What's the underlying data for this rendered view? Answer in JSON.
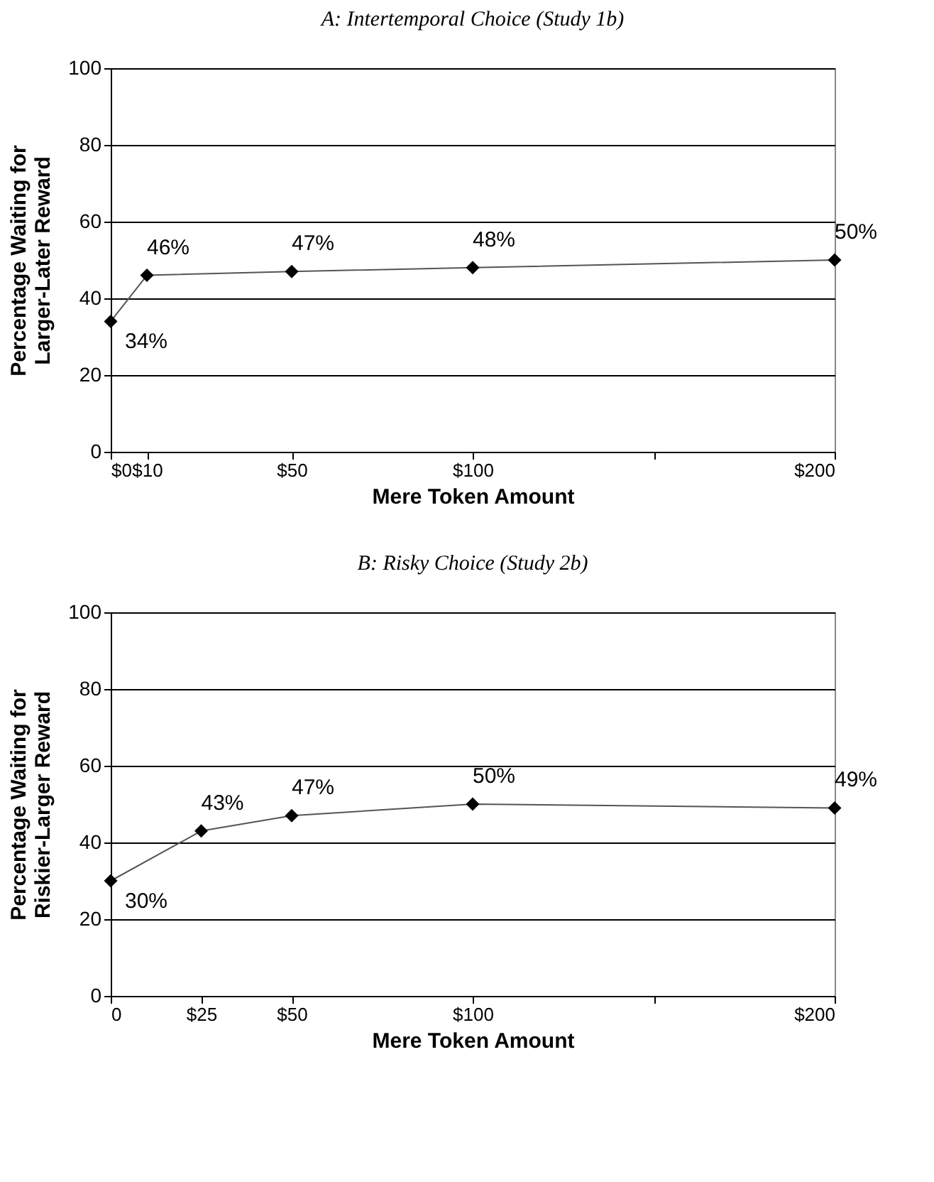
{
  "chart_data": [
    {
      "type": "line",
      "title": "A: Intertemporal Choice (Study 1b)",
      "xlabel": "Mere Token Amount",
      "ylabel": "Percentage Waiting for\nLarger-Later Reward",
      "x": [
        0,
        10,
        50,
        100,
        200
      ],
      "series": [
        {
          "color": "#000000",
          "values": [
            34,
            46,
            47,
            48,
            50
          ],
          "value_labels": [
            "34%",
            "46%",
            "47%",
            "48%",
            "50%"
          ]
        }
      ],
      "xlim": [
        0,
        200
      ],
      "xticks": [
        {
          "value": 0,
          "label": "$0"
        },
        {
          "value": 10,
          "label": "$10"
        },
        {
          "value": 50,
          "label": "$50"
        },
        {
          "value": 100,
          "label": "$100"
        },
        {
          "value": 150,
          "label": null
        },
        {
          "value": 200,
          "label": "$200"
        }
      ],
      "ylim": [
        0,
        100
      ],
      "yticks": [
        0,
        20,
        40,
        60,
        80,
        100
      ],
      "grid": "y",
      "marker": "diamond",
      "line_style": "solid"
    },
    {
      "type": "line",
      "title": "B: Risky Choice (Study 2b)",
      "xlabel": "Mere Token Amount",
      "ylabel": "Percentage Waiting for\nRiskier-Larger Reward",
      "x": [
        0,
        25,
        50,
        100,
        200
      ],
      "series": [
        {
          "color": "#000000",
          "values": [
            30,
            43,
            47,
            50,
            49
          ],
          "value_labels": [
            "30%",
            "43%",
            "47%",
            "50%",
            "49%"
          ]
        }
      ],
      "xlim": [
        0,
        200
      ],
      "xticks": [
        0,
        {
          "value": 25,
          "label": "$25"
        },
        {
          "value": 50,
          "label": "$50"
        },
        {
          "value": 100,
          "label": "$100"
        },
        {
          "value": 150,
          "label": null
        },
        {
          "value": 200,
          "label": "$200"
        }
      ],
      "ylim": [
        0,
        100
      ],
      "yticks": [
        0,
        20,
        40,
        60,
        80,
        100
      ],
      "grid": "y",
      "marker": "diamond",
      "line_style": "solid"
    }
  ]
}
